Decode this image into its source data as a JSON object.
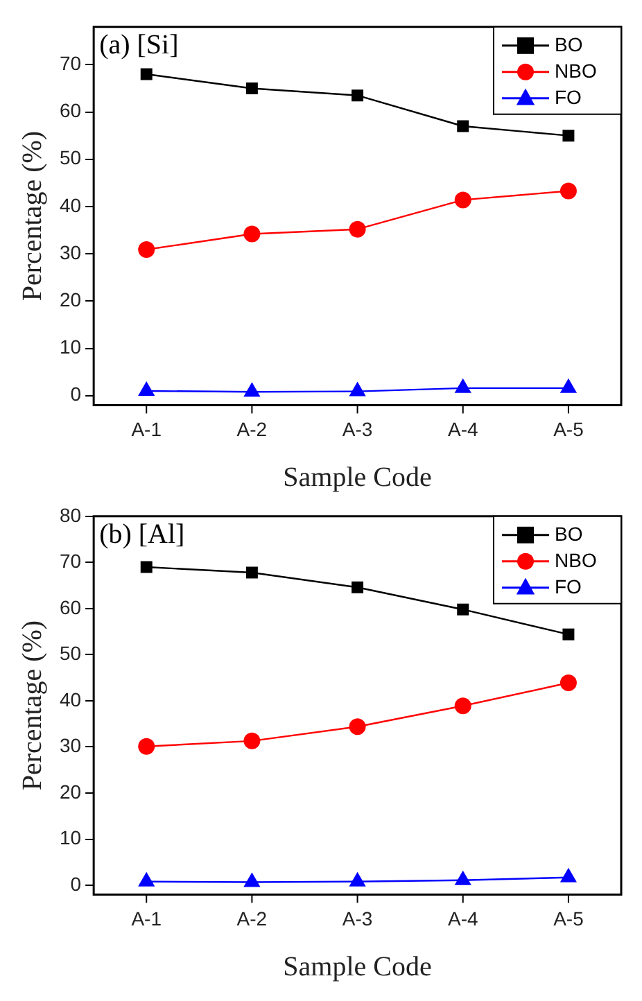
{
  "chart_data": [
    {
      "type": "line",
      "annotations": [
        "(a) [Si]"
      ],
      "xlabel": "Sample Code",
      "ylabel": "Percentage (%)",
      "categories": [
        "A-1",
        "A-2",
        "A-3",
        "A-4",
        "A-5"
      ],
      "series": [
        {
          "name": "BO",
          "color": "#000000",
          "marker": "square",
          "values": [
            68,
            65,
            63.5,
            57,
            55
          ]
        },
        {
          "name": "NBO",
          "color": "#ff0000",
          "marker": "circle",
          "values": [
            30.9,
            34.2,
            35.2,
            41.4,
            43.3
          ]
        },
        {
          "name": "FO",
          "color": "#0000ff",
          "marker": "triangle",
          "values": [
            1,
            0.8,
            0.9,
            1.6,
            1.6
          ]
        }
      ],
      "ylim": [
        -2,
        78
      ],
      "yticks": [
        0,
        10,
        20,
        30,
        40,
        50,
        60,
        70
      ],
      "legend": "top right",
      "grid": false,
      "line_style": "solid"
    },
    {
      "type": "line",
      "annotations": [
        "(b) [Al]"
      ],
      "xlabel": "Sample Code",
      "ylabel": "Percentage (%)",
      "categories": [
        "A-1",
        "A-2",
        "A-3",
        "A-4",
        "A-5"
      ],
      "series": [
        {
          "name": "BO",
          "color": "#000000",
          "marker": "square",
          "values": [
            69,
            67.8,
            64.6,
            59.8,
            54.4
          ]
        },
        {
          "name": "NBO",
          "color": "#ff0000",
          "marker": "circle",
          "values": [
            30.1,
            31.3,
            34.4,
            38.9,
            43.9
          ]
        },
        {
          "name": "FO",
          "color": "#0000ff",
          "marker": "triangle",
          "values": [
            0.8,
            0.7,
            0.8,
            1.1,
            1.7
          ]
        }
      ],
      "ylim": [
        -2,
        80
      ],
      "yticks": [
        0,
        10,
        20,
        30,
        40,
        50,
        60,
        70,
        80
      ],
      "legend": "top right",
      "grid": false,
      "line_style": "solid"
    }
  ]
}
